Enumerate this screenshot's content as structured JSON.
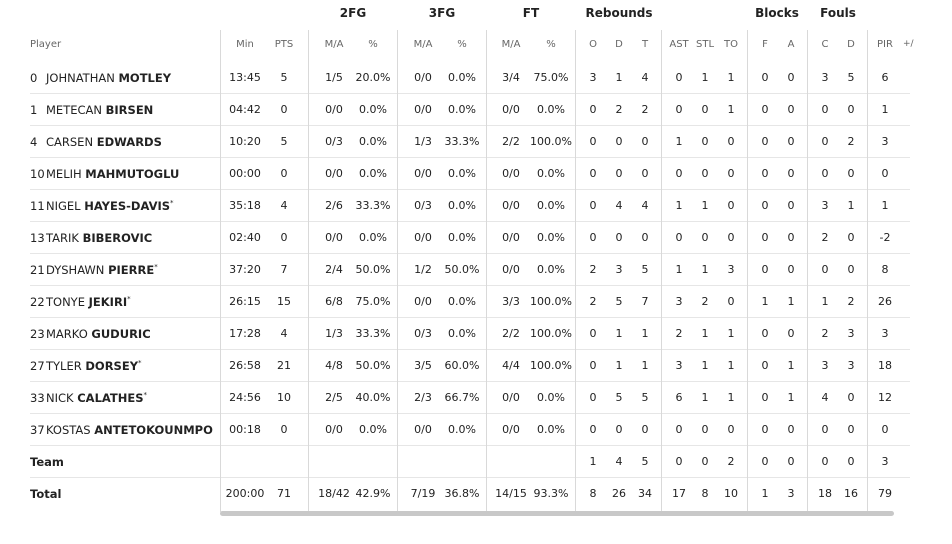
{
  "groups": {
    "fg2": "2FG",
    "fg3": "3FG",
    "ft": "FT",
    "reb": "Rebounds",
    "blocks": "Blocks",
    "fouls": "Fouls"
  },
  "columns": {
    "player": "Player",
    "min": "Min",
    "pts": "PTS",
    "fg2_ma": "M/A",
    "fg2_pct": "%",
    "fg3_ma": "M/A",
    "fg3_pct": "%",
    "ft_ma": "M/A",
    "ft_pct": "%",
    "o": "O",
    "d": "D",
    "t": "T",
    "ast": "AST",
    "stl": "STL",
    "to": "TO",
    "f": "F",
    "a": "A",
    "c": "C",
    "fd": "D",
    "pir": "PIR",
    "pm": "+/"
  },
  "players": [
    {
      "num": "0",
      "first": "JOHNATHAN",
      "last": "MOTLEY",
      "star": false,
      "min": "13:45",
      "pts": "5",
      "fg2": "1/5",
      "fg2p": "20.0%",
      "fg3": "0/0",
      "fg3p": "0.0%",
      "ft": "3/4",
      "ftp": "75.0%",
      "o": "3",
      "d": "1",
      "t": "4",
      "ast": "0",
      "stl": "1",
      "to": "1",
      "bf": "0",
      "ba": "0",
      "fc": "3",
      "fd": "5",
      "pir": "6"
    },
    {
      "num": "1",
      "first": "METECAN",
      "last": "BIRSEN",
      "star": false,
      "min": "04:42",
      "pts": "0",
      "fg2": "0/0",
      "fg2p": "0.0%",
      "fg3": "0/0",
      "fg3p": "0.0%",
      "ft": "0/0",
      "ftp": "0.0%",
      "o": "0",
      "d": "2",
      "t": "2",
      "ast": "0",
      "stl": "0",
      "to": "1",
      "bf": "0",
      "ba": "0",
      "fc": "0",
      "fd": "0",
      "pir": "1"
    },
    {
      "num": "4",
      "first": "CARSEN",
      "last": "EDWARDS",
      "star": false,
      "min": "10:20",
      "pts": "5",
      "fg2": "0/3",
      "fg2p": "0.0%",
      "fg3": "1/3",
      "fg3p": "33.3%",
      "ft": "2/2",
      "ftp": "100.0%",
      "o": "0",
      "d": "0",
      "t": "0",
      "ast": "1",
      "stl": "0",
      "to": "0",
      "bf": "0",
      "ba": "0",
      "fc": "0",
      "fd": "2",
      "pir": "3"
    },
    {
      "num": "10",
      "first": "MELIH",
      "last": "MAHMUTOGLU",
      "star": false,
      "min": "00:00",
      "pts": "0",
      "fg2": "0/0",
      "fg2p": "0.0%",
      "fg3": "0/0",
      "fg3p": "0.0%",
      "ft": "0/0",
      "ftp": "0.0%",
      "o": "0",
      "d": "0",
      "t": "0",
      "ast": "0",
      "stl": "0",
      "to": "0",
      "bf": "0",
      "ba": "0",
      "fc": "0",
      "fd": "0",
      "pir": "0"
    },
    {
      "num": "11",
      "first": "NIGEL",
      "last": "HAYES-DAVIS",
      "star": true,
      "min": "35:18",
      "pts": "4",
      "fg2": "2/6",
      "fg2p": "33.3%",
      "fg3": "0/3",
      "fg3p": "0.0%",
      "ft": "0/0",
      "ftp": "0.0%",
      "o": "0",
      "d": "4",
      "t": "4",
      "ast": "1",
      "stl": "1",
      "to": "0",
      "bf": "0",
      "ba": "0",
      "fc": "3",
      "fd": "1",
      "pir": "1"
    },
    {
      "num": "13",
      "first": "TARIK",
      "last": "BIBEROVIC",
      "star": false,
      "min": "02:40",
      "pts": "0",
      "fg2": "0/0",
      "fg2p": "0.0%",
      "fg3": "0/0",
      "fg3p": "0.0%",
      "ft": "0/0",
      "ftp": "0.0%",
      "o": "0",
      "d": "0",
      "t": "0",
      "ast": "0",
      "stl": "0",
      "to": "0",
      "bf": "0",
      "ba": "0",
      "fc": "2",
      "fd": "0",
      "pir": "-2"
    },
    {
      "num": "21",
      "first": "DYSHAWN",
      "last": "PIERRE",
      "star": true,
      "min": "37:20",
      "pts": "7",
      "fg2": "2/4",
      "fg2p": "50.0%",
      "fg3": "1/2",
      "fg3p": "50.0%",
      "ft": "0/0",
      "ftp": "0.0%",
      "o": "2",
      "d": "3",
      "t": "5",
      "ast": "1",
      "stl": "1",
      "to": "3",
      "bf": "0",
      "ba": "0",
      "fc": "0",
      "fd": "0",
      "pir": "8"
    },
    {
      "num": "22",
      "first": "TONYE",
      "last": "JEKIRI",
      "star": true,
      "min": "26:15",
      "pts": "15",
      "fg2": "6/8",
      "fg2p": "75.0%",
      "fg3": "0/0",
      "fg3p": "0.0%",
      "ft": "3/3",
      "ftp": "100.0%",
      "o": "2",
      "d": "5",
      "t": "7",
      "ast": "3",
      "stl": "2",
      "to": "0",
      "bf": "1",
      "ba": "1",
      "fc": "1",
      "fd": "2",
      "pir": "26"
    },
    {
      "num": "23",
      "first": "MARKO",
      "last": "GUDURIC",
      "star": false,
      "min": "17:28",
      "pts": "4",
      "fg2": "1/3",
      "fg2p": "33.3%",
      "fg3": "0/3",
      "fg3p": "0.0%",
      "ft": "2/2",
      "ftp": "100.0%",
      "o": "0",
      "d": "1",
      "t": "1",
      "ast": "2",
      "stl": "1",
      "to": "1",
      "bf": "0",
      "ba": "0",
      "fc": "2",
      "fd": "3",
      "pir": "3"
    },
    {
      "num": "27",
      "first": "TYLER",
      "last": "DORSEY",
      "star": true,
      "min": "26:58",
      "pts": "21",
      "fg2": "4/8",
      "fg2p": "50.0%",
      "fg3": "3/5",
      "fg3p": "60.0%",
      "ft": "4/4",
      "ftp": "100.0%",
      "o": "0",
      "d": "1",
      "t": "1",
      "ast": "3",
      "stl": "1",
      "to": "1",
      "bf": "0",
      "ba": "1",
      "fc": "3",
      "fd": "3",
      "pir": "18"
    },
    {
      "num": "33",
      "first": "NICK",
      "last": "CALATHES",
      "star": true,
      "min": "24:56",
      "pts": "10",
      "fg2": "2/5",
      "fg2p": "40.0%",
      "fg3": "2/3",
      "fg3p": "66.7%",
      "ft": "0/0",
      "ftp": "0.0%",
      "o": "0",
      "d": "5",
      "t": "5",
      "ast": "6",
      "stl": "1",
      "to": "1",
      "bf": "0",
      "ba": "1",
      "fc": "4",
      "fd": "0",
      "pir": "12"
    },
    {
      "num": "37",
      "first": "KOSTAS",
      "last": "ANTETOKOUNMPO",
      "star": false,
      "min": "00:18",
      "pts": "0",
      "fg2": "0/0",
      "fg2p": "0.0%",
      "fg3": "0/0",
      "fg3p": "0.0%",
      "ft": "0/0",
      "ftp": "0.0%",
      "o": "0",
      "d": "0",
      "t": "0",
      "ast": "0",
      "stl": "0",
      "to": "0",
      "bf": "0",
      "ba": "0",
      "fc": "0",
      "fd": "0",
      "pir": "0"
    }
  ],
  "team": {
    "label": "Team",
    "o": "1",
    "d": "4",
    "t": "5",
    "ast": "0",
    "stl": "0",
    "to": "2",
    "bf": "0",
    "ba": "0",
    "fc": "0",
    "fd": "0",
    "pir": "3"
  },
  "total": {
    "label": "Total",
    "min": "200:00",
    "pts": "71",
    "fg2": "18/42",
    "fg2p": "42.9%",
    "fg3": "7/19",
    "fg3p": "36.8%",
    "ft": "14/15",
    "ftp": "93.3%",
    "o": "8",
    "d": "26",
    "t": "34",
    "ast": "17",
    "stl": "8",
    "to": "10",
    "bf": "1",
    "ba": "3",
    "fc": "18",
    "fd": "16",
    "pir": "79"
  }
}
